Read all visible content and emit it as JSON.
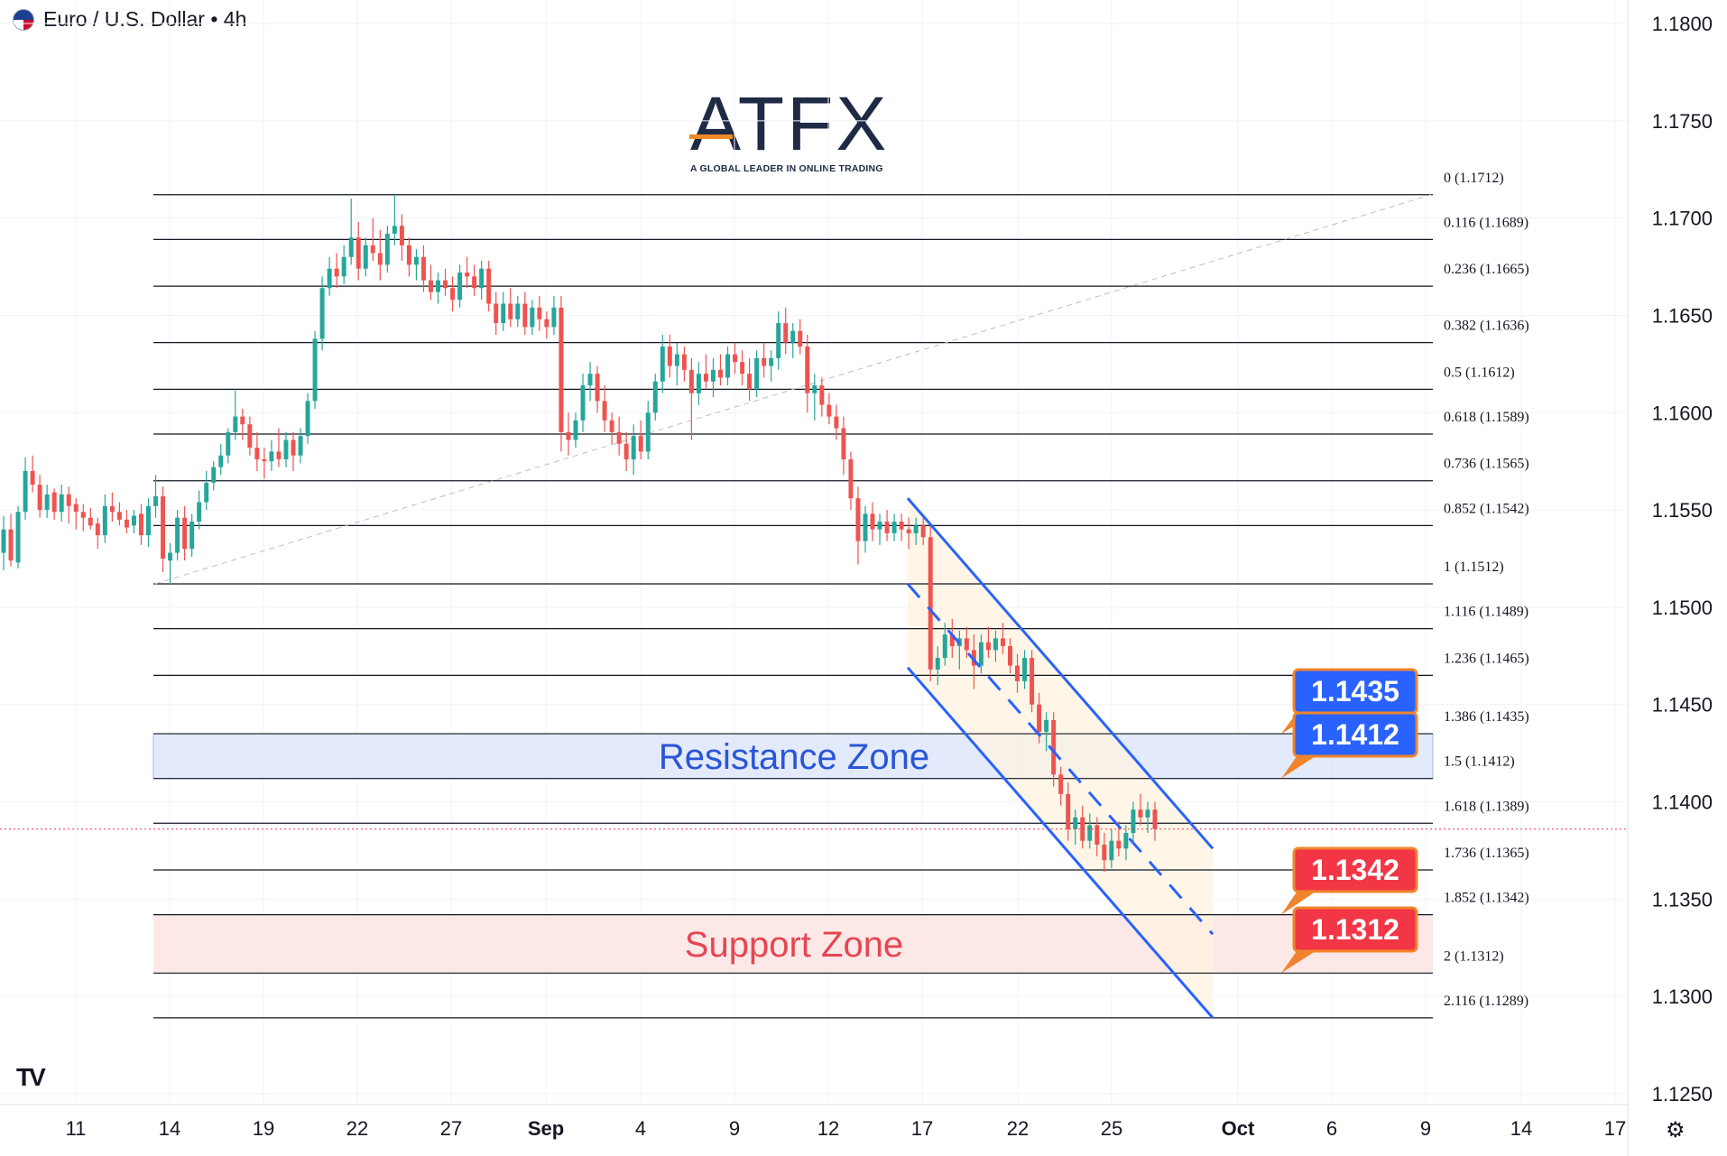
{
  "header": {
    "symbol_title": "Euro / U.S. Dollar • 4h",
    "flag_icon": "eur-usd-flag-icon"
  },
  "logo": {
    "name": "ATFX",
    "tagline": "A GLOBAL LEADER IN ONLINE TRADING"
  },
  "colors": {
    "up": "#26a69a",
    "down": "#ef5350",
    "channel": "#2962ff",
    "resistance_fill": "#dbe6fb",
    "support_fill": "#fde5e6",
    "badge_blue": "#2962ff",
    "badge_red": "#f23645",
    "badge_border": "#f0842c",
    "fib_line": "#131722",
    "current_price_line": "#f23645"
  },
  "chart_data": {
    "type": "candlestick",
    "instrument": "Euro / U.S. Dollar",
    "timeframe": "4h",
    "price_axis": {
      "min": 1.125,
      "max": 1.18,
      "ticks": [
        "1.1800",
        "1.1750",
        "1.1700",
        "1.1650",
        "1.1600",
        "1.1550",
        "1.1500",
        "1.1450",
        "1.1400",
        "1.1350",
        "1.1300",
        "1.1250"
      ]
    },
    "time_axis": {
      "ticks": [
        {
          "label": "11",
          "bold": false
        },
        {
          "label": "14",
          "bold": false
        },
        {
          "label": "19",
          "bold": false
        },
        {
          "label": "22",
          "bold": false
        },
        {
          "label": "27",
          "bold": false
        },
        {
          "label": "Sep",
          "bold": true
        },
        {
          "label": "4",
          "bold": false
        },
        {
          "label": "9",
          "bold": false
        },
        {
          "label": "12",
          "bold": false
        },
        {
          "label": "17",
          "bold": false
        },
        {
          "label": "22",
          "bold": false
        },
        {
          "label": "25",
          "bold": false
        },
        {
          "label": "Oct",
          "bold": true
        },
        {
          "label": "6",
          "bold": false
        },
        {
          "label": "9",
          "bold": false
        },
        {
          "label": "14",
          "bold": false
        },
        {
          "label": "17",
          "bold": false
        }
      ]
    },
    "fibonacci": [
      {
        "label": "0 (1.1712)",
        "price": 1.1712
      },
      {
        "label": "0.116 (1.1689)",
        "price": 1.1689
      },
      {
        "label": "0.236 (1.1665)",
        "price": 1.1665
      },
      {
        "label": "0.382 (1.1636)",
        "price": 1.1636
      },
      {
        "label": "0.5 (1.1612)",
        "price": 1.1612
      },
      {
        "label": "0.618 (1.1589)",
        "price": 1.1589
      },
      {
        "label": "0.736 (1.1565)",
        "price": 1.1565
      },
      {
        "label": "0.852 (1.1542)",
        "price": 1.1542
      },
      {
        "label": "1 (1.1512)",
        "price": 1.1512
      },
      {
        "label": "1.116 (1.1489)",
        "price": 1.1489
      },
      {
        "label": "1.236 (1.1465)",
        "price": 1.1465
      },
      {
        "label": "1.386 (1.1435)",
        "price": 1.1435
      },
      {
        "label": "1.5 (1.1412)",
        "price": 1.1412
      },
      {
        "label": "1.618 (1.1389)",
        "price": 1.1389
      },
      {
        "label": "1.736 (1.1365)",
        "price": 1.1365
      },
      {
        "label": "1.852 (1.1342)",
        "price": 1.1342
      },
      {
        "label": "2 (1.1312)",
        "price": 1.1312
      },
      {
        "label": "2.116 (1.1289)",
        "price": 1.1289
      }
    ],
    "zones": [
      {
        "name": "Resistance Zone",
        "top": 1.1435,
        "bottom": 1.1412
      },
      {
        "name": "Support Zone",
        "top": 1.1342,
        "bottom": 1.1312
      }
    ],
    "badges": [
      {
        "text": "1.1435",
        "price": 1.1435,
        "kind": "resistance"
      },
      {
        "text": "1.1412",
        "price": 1.1412,
        "kind": "resistance"
      },
      {
        "text": "1.1342",
        "price": 1.1342,
        "kind": "support"
      },
      {
        "text": "1.1312",
        "price": 1.1312,
        "kind": "support"
      }
    ],
    "current_price": 1.1386,
    "candles": [
      [
        1.1528,
        1.1547,
        1.1519,
        1.154
      ],
      [
        1.154,
        1.1548,
        1.1521,
        1.1524
      ],
      [
        1.1523,
        1.1552,
        1.152,
        1.1549
      ],
      [
        1.1549,
        1.1577,
        1.1545,
        1.157
      ],
      [
        1.157,
        1.1578,
        1.1559,
        1.1563
      ],
      [
        1.1563,
        1.1568,
        1.1546,
        1.155
      ],
      [
        1.155,
        1.1563,
        1.1546,
        1.1558
      ],
      [
        1.1559,
        1.1561,
        1.1545,
        1.1549
      ],
      [
        1.1549,
        1.1563,
        1.1544,
        1.1558
      ],
      [
        1.1558,
        1.1562,
        1.1543,
        1.1552
      ],
      [
        1.1553,
        1.1556,
        1.154,
        1.1549
      ],
      [
        1.1549,
        1.1553,
        1.1539,
        1.1546
      ],
      [
        1.1546,
        1.1551,
        1.154,
        1.1542
      ],
      [
        1.1543,
        1.1546,
        1.153,
        1.1537
      ],
      [
        1.1537,
        1.1558,
        1.1533,
        1.1552
      ],
      [
        1.1552,
        1.1559,
        1.1544,
        1.1549
      ],
      [
        1.1549,
        1.1554,
        1.1542,
        1.1545
      ],
      [
        1.1545,
        1.155,
        1.1538,
        1.1541
      ],
      [
        1.1542,
        1.155,
        1.1538,
        1.1547
      ],
      [
        1.1548,
        1.1553,
        1.1532,
        1.1537
      ],
      [
        1.1537,
        1.1556,
        1.1531,
        1.1552
      ],
      [
        1.1552,
        1.1568,
        1.1546,
        1.1557
      ],
      [
        1.1557,
        1.1562,
        1.1518,
        1.1525
      ],
      [
        1.1524,
        1.1533,
        1.1512,
        1.1528
      ],
      [
        1.1528,
        1.155,
        1.1524,
        1.1546
      ],
      [
        1.1546,
        1.1552,
        1.1524,
        1.153
      ],
      [
        1.153,
        1.1548,
        1.1526,
        1.1544
      ],
      [
        1.1544,
        1.156,
        1.154,
        1.1554
      ],
      [
        1.1554,
        1.157,
        1.155,
        1.1564
      ],
      [
        1.1564,
        1.1575,
        1.156,
        1.1572
      ],
      [
        1.1572,
        1.1584,
        1.1568,
        1.1578
      ],
      [
        1.1578,
        1.1592,
        1.1574,
        1.159
      ],
      [
        1.159,
        1.1612,
        1.1586,
        1.1598
      ],
      [
        1.1598,
        1.1602,
        1.1586,
        1.1594
      ],
      [
        1.1594,
        1.1598,
        1.1578,
        1.1582
      ],
      [
        1.1582,
        1.159,
        1.157,
        1.1576
      ],
      [
        1.1576,
        1.1582,
        1.1566,
        1.1575
      ],
      [
        1.1575,
        1.1586,
        1.157,
        1.158
      ],
      [
        1.158,
        1.1592,
        1.1572,
        1.1576
      ],
      [
        1.1576,
        1.159,
        1.1572,
        1.1586
      ],
      [
        1.1586,
        1.159,
        1.157,
        1.1578
      ],
      [
        1.1578,
        1.1592,
        1.1574,
        1.1588
      ],
      [
        1.1588,
        1.161,
        1.1584,
        1.1606
      ],
      [
        1.1606,
        1.1642,
        1.1602,
        1.1638
      ],
      [
        1.1638,
        1.167,
        1.1632,
        1.1664
      ],
      [
        1.1664,
        1.168,
        1.166,
        1.1674
      ],
      [
        1.1674,
        1.1682,
        1.1664,
        1.167
      ],
      [
        1.167,
        1.1686,
        1.1666,
        1.168
      ],
      [
        1.168,
        1.171,
        1.1676,
        1.169
      ],
      [
        1.169,
        1.1698,
        1.1668,
        1.1674
      ],
      [
        1.1674,
        1.169,
        1.167,
        1.1686
      ],
      [
        1.1686,
        1.17,
        1.1678,
        1.1682
      ],
      [
        1.1682,
        1.1694,
        1.1668,
        1.1676
      ],
      [
        1.1676,
        1.1696,
        1.1672,
        1.1692
      ],
      [
        1.1692,
        1.1712,
        1.1686,
        1.1696
      ],
      [
        1.1696,
        1.1702,
        1.1678,
        1.1686
      ],
      [
        1.1686,
        1.169,
        1.167,
        1.1676
      ],
      [
        1.1676,
        1.1684,
        1.1668,
        1.168
      ],
      [
        1.168,
        1.1686,
        1.1662,
        1.1668
      ],
      [
        1.1668,
        1.1676,
        1.1658,
        1.1662
      ],
      [
        1.1662,
        1.1672,
        1.1656,
        1.1668
      ],
      [
        1.1668,
        1.1674,
        1.166,
        1.1664
      ],
      [
        1.1664,
        1.167,
        1.1652,
        1.1658
      ],
      [
        1.1658,
        1.1676,
        1.1654,
        1.1672
      ],
      [
        1.1672,
        1.168,
        1.1664,
        1.167
      ],
      [
        1.167,
        1.1676,
        1.166,
        1.1664
      ],
      [
        1.1664,
        1.1678,
        1.1658,
        1.1674
      ],
      [
        1.1674,
        1.1678,
        1.1652,
        1.1656
      ],
      [
        1.1656,
        1.1662,
        1.164,
        1.1646
      ],
      [
        1.1646,
        1.1662,
        1.1642,
        1.1656
      ],
      [
        1.1656,
        1.1664,
        1.1644,
        1.1648
      ],
      [
        1.1648,
        1.166,
        1.1644,
        1.1656
      ],
      [
        1.1656,
        1.1662,
        1.164,
        1.1644
      ],
      [
        1.1644,
        1.1658,
        1.164,
        1.1654
      ],
      [
        1.1654,
        1.166,
        1.1642,
        1.1648
      ],
      [
        1.1648,
        1.1652,
        1.1638,
        1.1644
      ],
      [
        1.1644,
        1.166,
        1.164,
        1.1654
      ],
      [
        1.1654,
        1.166,
        1.158,
        1.159
      ],
      [
        1.159,
        1.16,
        1.1578,
        1.1586
      ],
      [
        1.1586,
        1.16,
        1.1582,
        1.1596
      ],
      [
        1.1596,
        1.162,
        1.159,
        1.1614
      ],
      [
        1.1614,
        1.1626,
        1.1606,
        1.162
      ],
      [
        1.162,
        1.1624,
        1.16,
        1.1606
      ],
      [
        1.1606,
        1.1614,
        1.159,
        1.1596
      ],
      [
        1.1596,
        1.16,
        1.1584,
        1.159
      ],
      [
        1.159,
        1.1598,
        1.1578,
        1.1584
      ],
      [
        1.1584,
        1.159,
        1.157,
        1.1576
      ],
      [
        1.1576,
        1.1594,
        1.1568,
        1.1588
      ],
      [
        1.1588,
        1.1596,
        1.1576,
        1.158
      ],
      [
        1.158,
        1.1606,
        1.1576,
        1.16
      ],
      [
        1.16,
        1.162,
        1.1596,
        1.1616
      ],
      [
        1.1616,
        1.164,
        1.161,
        1.1634
      ],
      [
        1.1634,
        1.164,
        1.1618,
        1.1624
      ],
      [
        1.1624,
        1.1636,
        1.1614,
        1.163
      ],
      [
        1.163,
        1.1634,
        1.1616,
        1.1622
      ],
      [
        1.1622,
        1.1628,
        1.1586,
        1.161
      ],
      [
        1.161,
        1.1626,
        1.1604,
        1.162
      ],
      [
        1.162,
        1.163,
        1.1612,
        1.1616
      ],
      [
        1.1616,
        1.1628,
        1.1608,
        1.1622
      ],
      [
        1.1622,
        1.163,
        1.1614,
        1.1618
      ],
      [
        1.1618,
        1.1634,
        1.1614,
        1.163
      ],
      [
        1.163,
        1.1636,
        1.162,
        1.1626
      ],
      [
        1.1626,
        1.1632,
        1.1614,
        1.162
      ],
      [
        1.162,
        1.1628,
        1.1606,
        1.1612
      ],
      [
        1.1612,
        1.1632,
        1.1608,
        1.1628
      ],
      [
        1.1628,
        1.1636,
        1.1618,
        1.1624
      ],
      [
        1.1624,
        1.1632,
        1.1616,
        1.1628
      ],
      [
        1.1628,
        1.1652,
        1.1622,
        1.1646
      ],
      [
        1.1646,
        1.1654,
        1.163,
        1.1636
      ],
      [
        1.1636,
        1.1646,
        1.1628,
        1.1642
      ],
      [
        1.1642,
        1.1648,
        1.163,
        1.1634
      ],
      [
        1.1634,
        1.164,
        1.16,
        1.161
      ],
      [
        1.161,
        1.162,
        1.1596,
        1.1614
      ],
      [
        1.1614,
        1.1618,
        1.1598,
        1.1604
      ],
      [
        1.1604,
        1.161,
        1.1594,
        1.1598
      ],
      [
        1.1598,
        1.1604,
        1.1586,
        1.1592
      ],
      [
        1.1592,
        1.1598,
        1.1568,
        1.1576
      ],
      [
        1.1576,
        1.158,
        1.155,
        1.1556
      ],
      [
        1.1556,
        1.1562,
        1.1522,
        1.1534
      ],
      [
        1.1534,
        1.1552,
        1.1528,
        1.1548
      ],
      [
        1.1548,
        1.1554,
        1.1534,
        1.154
      ],
      [
        1.154,
        1.1548,
        1.1532,
        1.1544
      ],
      [
        1.1544,
        1.155,
        1.1534,
        1.1538
      ],
      [
        1.1538,
        1.1548,
        1.1534,
        1.1544
      ],
      [
        1.1544,
        1.1548,
        1.1534,
        1.154
      ],
      [
        1.154,
        1.1546,
        1.153,
        1.1538
      ],
      [
        1.1538,
        1.1546,
        1.1532,
        1.1542
      ],
      [
        1.1542,
        1.1546,
        1.1532,
        1.1536
      ],
      [
        1.1536,
        1.1542,
        1.1462,
        1.1468
      ],
      [
        1.1468,
        1.148,
        1.146,
        1.1474
      ],
      [
        1.1474,
        1.1492,
        1.147,
        1.1486
      ],
      [
        1.1486,
        1.1494,
        1.1474,
        1.148
      ],
      [
        1.148,
        1.1488,
        1.1468,
        1.1484
      ],
      [
        1.1484,
        1.149,
        1.1474,
        1.1478
      ],
      [
        1.1478,
        1.1486,
        1.1458,
        1.147
      ],
      [
        1.147,
        1.1486,
        1.1466,
        1.1482
      ],
      [
        1.1482,
        1.149,
        1.1474,
        1.1478
      ],
      [
        1.1478,
        1.1488,
        1.1472,
        1.1484
      ],
      [
        1.1484,
        1.1492,
        1.1476,
        1.148
      ],
      [
        1.148,
        1.1484,
        1.1466,
        1.147
      ],
      [
        1.147,
        1.1476,
        1.1456,
        1.1462
      ],
      [
        1.1462,
        1.1478,
        1.1458,
        1.1474
      ],
      [
        1.1474,
        1.1478,
        1.1446,
        1.145
      ],
      [
        1.145,
        1.1456,
        1.143,
        1.1436
      ],
      [
        1.1436,
        1.1446,
        1.1426,
        1.1442
      ],
      [
        1.1442,
        1.1446,
        1.1408,
        1.1414
      ],
      [
        1.1414,
        1.1418,
        1.1398,
        1.1404
      ],
      [
        1.1404,
        1.141,
        1.138,
        1.1386
      ],
      [
        1.1386,
        1.1396,
        1.1378,
        1.1392
      ],
      [
        1.1392,
        1.1398,
        1.1376,
        1.138
      ],
      [
        1.138,
        1.1394,
        1.1376,
        1.1388
      ],
      [
        1.1388,
        1.1392,
        1.1372,
        1.1378
      ],
      [
        1.1378,
        1.1384,
        1.1364,
        1.137
      ],
      [
        1.137,
        1.1386,
        1.1366,
        1.138
      ],
      [
        1.138,
        1.139,
        1.1372,
        1.1376
      ],
      [
        1.1376,
        1.1388,
        1.137,
        1.1384
      ],
      [
        1.1384,
        1.14,
        1.1378,
        1.1396
      ],
      [
        1.1396,
        1.1404,
        1.1388,
        1.1392
      ],
      [
        1.1392,
        1.14,
        1.1384,
        1.1396
      ],
      [
        1.1396,
        1.14,
        1.138,
        1.1386
      ]
    ]
  }
}
